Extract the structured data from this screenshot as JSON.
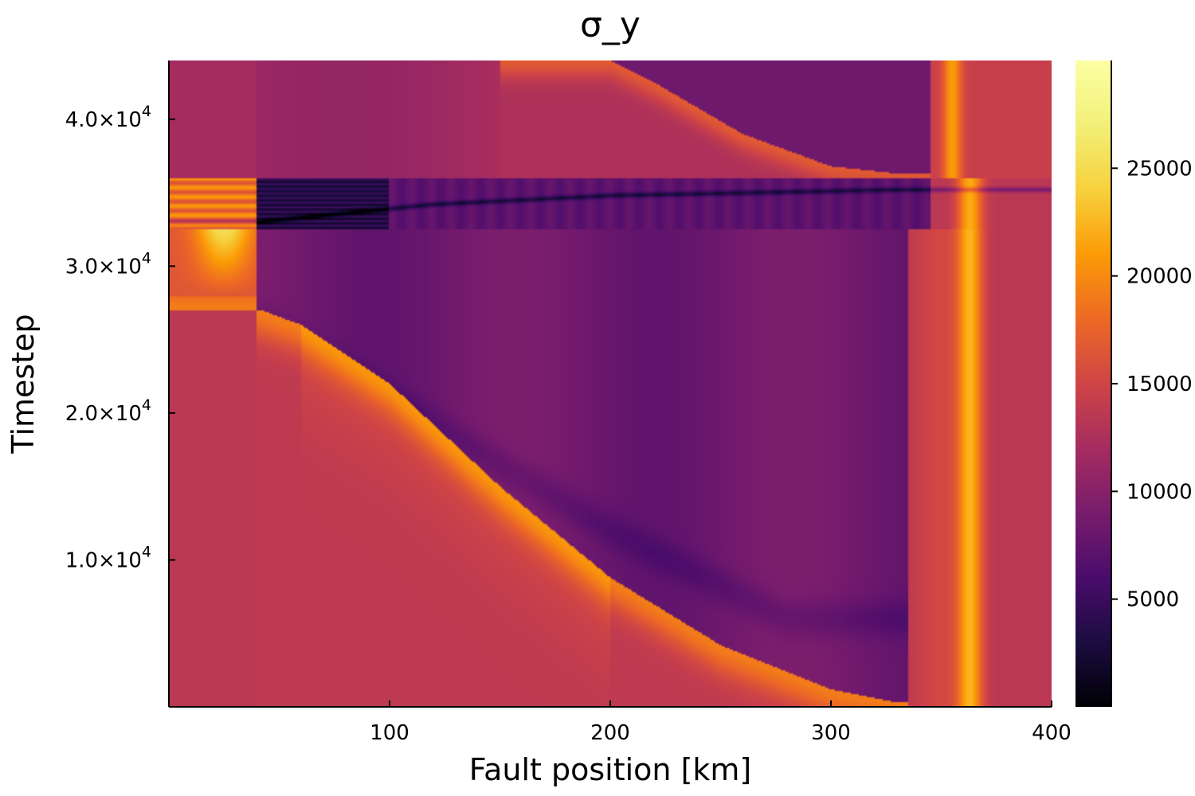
{
  "chart_data": {
    "type": "heatmap",
    "title": "σ_y",
    "xlabel": "Fault position [km]",
    "ylabel": "Timestep",
    "xlim": [
      0,
      400
    ],
    "ylim": [
      0,
      44000
    ],
    "x_ticks": [
      100,
      200,
      300,
      400
    ],
    "x_tick_labels": [
      "100",
      "200",
      "300",
      "400"
    ],
    "y_ticks": [
      10000,
      20000,
      30000,
      40000
    ],
    "y_tick_labels": [
      {
        "mantissa": "1.0×10",
        "exp": "4"
      },
      {
        "mantissa": "2.0×10",
        "exp": "4"
      },
      {
        "mantissa": "3.0×10",
        "exp": "4"
      },
      {
        "mantissa": "4.0×10",
        "exp": "4"
      }
    ],
    "colorbar": {
      "colormap": "inferno",
      "range": [
        0,
        30000
      ],
      "ticks": [
        5000,
        10000,
        15000,
        20000,
        25000
      ],
      "tick_labels": [
        "5000",
        "10000",
        "15000",
        "20000",
        "25000"
      ]
    },
    "grid": false,
    "features": {
      "band_times": [
        32500,
        36000
      ],
      "front_knots_x": [
        42,
        60,
        100,
        150,
        200,
        250,
        300,
        330
      ],
      "front_knots_t": [
        27000,
        26000,
        22000,
        15000,
        8800,
        4200,
        1200,
        300
      ],
      "right_bright_band_x": 363,
      "upper_front_knots_x": [
        200,
        220,
        260,
        300,
        330
      ],
      "upper_front_knots_t": [
        44000,
        42500,
        39000,
        36800,
        36300
      ]
    }
  }
}
